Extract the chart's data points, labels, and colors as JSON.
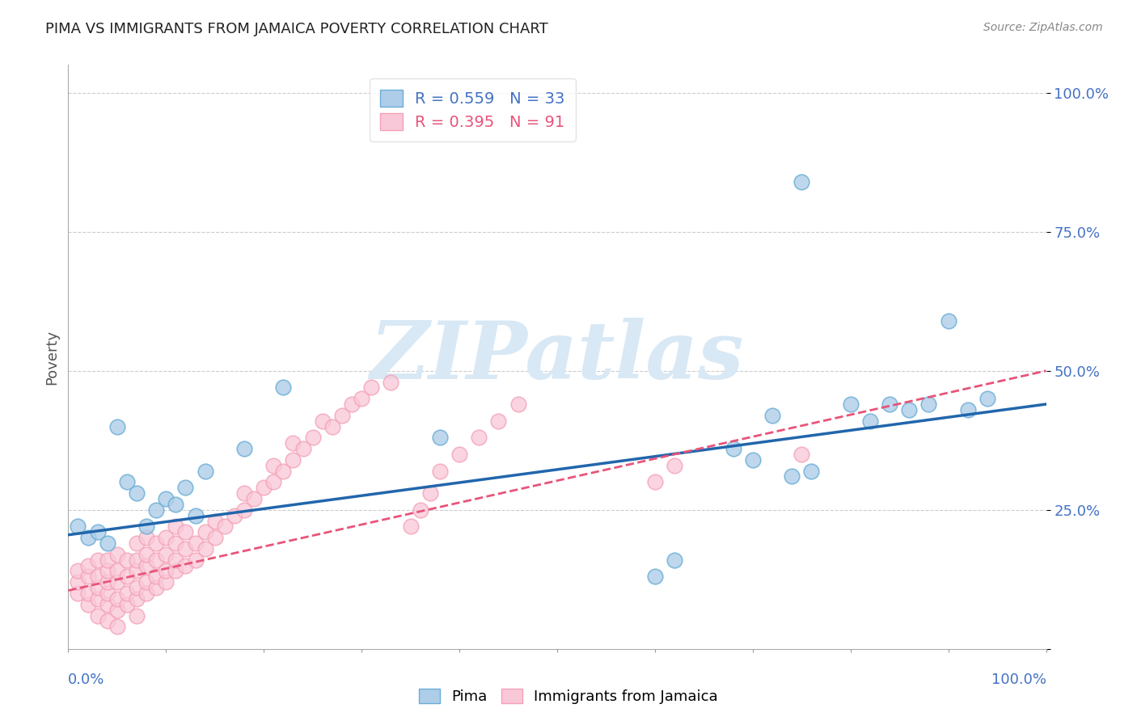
{
  "title": "PIMA VS IMMIGRANTS FROM JAMAICA POVERTY CORRELATION CHART",
  "source": "Source: ZipAtlas.com",
  "ylabel": "Poverty",
  "xlim": [
    0.0,
    1.0
  ],
  "ylim": [
    0.0,
    1.05
  ],
  "grid_color": "#cccccc",
  "background": "#ffffff",
  "pima_color": "#6baed6",
  "pima_color_fill": "#aecde8",
  "jamaica_color": "#f4a0b5",
  "jamaica_color_fill": "#f9c8d8",
  "pima_R": 0.559,
  "pima_N": 33,
  "jamaica_R": 0.395,
  "jamaica_N": 91,
  "pima_line_intercept": 0.205,
  "pima_line_slope": 0.235,
  "jamaica_line_intercept": 0.105,
  "jamaica_line_slope": 0.395,
  "pima_scatter_x": [
    0.01,
    0.02,
    0.03,
    0.04,
    0.05,
    0.06,
    0.07,
    0.08,
    0.09,
    0.1,
    0.11,
    0.12,
    0.13,
    0.14,
    0.18,
    0.22,
    0.38,
    0.6,
    0.62,
    0.68,
    0.7,
    0.72,
    0.74,
    0.75,
    0.76,
    0.8,
    0.82,
    0.84,
    0.86,
    0.88,
    0.9,
    0.92,
    0.94
  ],
  "pima_scatter_y": [
    0.22,
    0.2,
    0.21,
    0.19,
    0.4,
    0.3,
    0.28,
    0.22,
    0.25,
    0.27,
    0.26,
    0.29,
    0.24,
    0.32,
    0.36,
    0.47,
    0.38,
    0.13,
    0.16,
    0.36,
    0.34,
    0.42,
    0.31,
    0.84,
    0.32,
    0.44,
    0.41,
    0.44,
    0.43,
    0.44,
    0.59,
    0.43,
    0.45
  ],
  "jamaica_scatter_x": [
    0.01,
    0.01,
    0.01,
    0.02,
    0.02,
    0.02,
    0.02,
    0.03,
    0.03,
    0.03,
    0.03,
    0.03,
    0.04,
    0.04,
    0.04,
    0.04,
    0.04,
    0.04,
    0.05,
    0.05,
    0.05,
    0.05,
    0.05,
    0.05,
    0.06,
    0.06,
    0.06,
    0.06,
    0.07,
    0.07,
    0.07,
    0.07,
    0.07,
    0.07,
    0.08,
    0.08,
    0.08,
    0.08,
    0.08,
    0.09,
    0.09,
    0.09,
    0.09,
    0.1,
    0.1,
    0.1,
    0.1,
    0.11,
    0.11,
    0.11,
    0.11,
    0.12,
    0.12,
    0.12,
    0.13,
    0.13,
    0.14,
    0.14,
    0.15,
    0.15,
    0.16,
    0.17,
    0.18,
    0.18,
    0.19,
    0.2,
    0.21,
    0.21,
    0.22,
    0.23,
    0.23,
    0.24,
    0.25,
    0.26,
    0.27,
    0.28,
    0.29,
    0.3,
    0.31,
    0.33,
    0.35,
    0.36,
    0.37,
    0.38,
    0.4,
    0.42,
    0.44,
    0.46,
    0.6,
    0.62,
    0.75
  ],
  "jamaica_scatter_y": [
    0.1,
    0.12,
    0.14,
    0.08,
    0.1,
    0.13,
    0.15,
    0.06,
    0.09,
    0.11,
    0.13,
    0.16,
    0.05,
    0.08,
    0.1,
    0.12,
    0.14,
    0.16,
    0.04,
    0.07,
    0.09,
    0.12,
    0.14,
    0.17,
    0.08,
    0.1,
    0.13,
    0.16,
    0.06,
    0.09,
    0.11,
    0.14,
    0.16,
    0.19,
    0.1,
    0.12,
    0.15,
    0.17,
    0.2,
    0.11,
    0.13,
    0.16,
    0.19,
    0.12,
    0.14,
    0.17,
    0.2,
    0.14,
    0.16,
    0.19,
    0.22,
    0.15,
    0.18,
    0.21,
    0.16,
    0.19,
    0.18,
    0.21,
    0.2,
    0.23,
    0.22,
    0.24,
    0.25,
    0.28,
    0.27,
    0.29,
    0.3,
    0.33,
    0.32,
    0.34,
    0.37,
    0.36,
    0.38,
    0.41,
    0.4,
    0.42,
    0.44,
    0.45,
    0.47,
    0.48,
    0.22,
    0.25,
    0.28,
    0.32,
    0.35,
    0.38,
    0.41,
    0.44,
    0.3,
    0.33,
    0.35
  ],
  "watermark_text": "ZIPatlas",
  "watermark_color": "#d8e8f5",
  "ytick_labels_right": [
    "",
    "25.0%",
    "50.0%",
    "75.0%",
    "100.0%"
  ]
}
